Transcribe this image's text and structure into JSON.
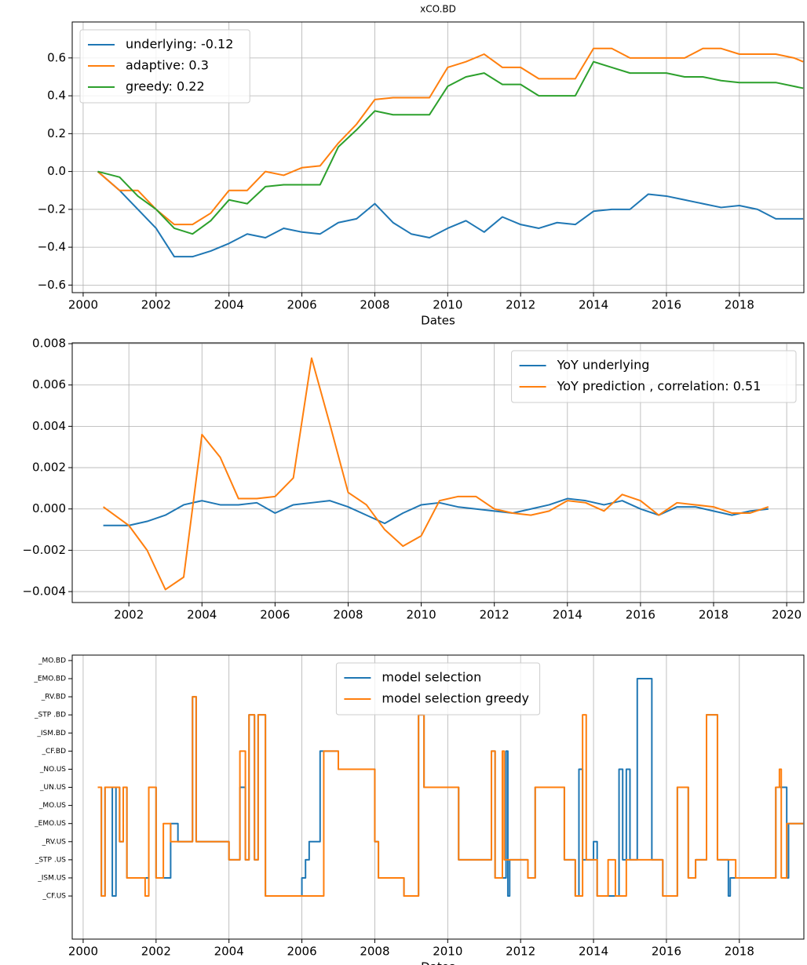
{
  "chart_data": [
    {
      "type": "line",
      "title": "xCO.BD",
      "xlabel": "Dates",
      "legend": "upper left",
      "grid": true,
      "xlim": [
        1999.7,
        2019.77
      ],
      "ylim": [
        -0.64,
        0.79
      ],
      "xticks": [
        2000,
        2002,
        2004,
        2006,
        2008,
        2010,
        2012,
        2014,
        2016,
        2018
      ],
      "yticks": [
        {
          "value": -0.6,
          "label": "−0.6"
        },
        {
          "value": -0.4,
          "label": "−0.4"
        },
        {
          "value": -0.2,
          "label": "−0.2"
        },
        {
          "value": 0,
          "label": "0.0"
        },
        0.2,
        0.4,
        0.6
      ],
      "x": [
        2000.4,
        2001.0,
        2001.5,
        2002.0,
        2002.5,
        2003.0,
        2003.5,
        2004.0,
        2004.5,
        2005.0,
        2005.5,
        2006.0,
        2006.5,
        2007.0,
        2007.5,
        2008.0,
        2008.5,
        2009.0,
        2009.5,
        2010.0,
        2010.5,
        2011.0,
        2011.5,
        2012.0,
        2012.5,
        2013.0,
        2013.5,
        2014.0,
        2014.5,
        2015.0,
        2015.5,
        2016.0,
        2016.5,
        2017.0,
        2017.5,
        2018.0,
        2018.5,
        2019.0,
        2019.5,
        2019.75
      ],
      "series": [
        {
          "name": "underlying: -0.12",
          "color": "#1f77b4",
          "values": [
            0.0,
            -0.1,
            -0.2,
            -0.3,
            -0.45,
            -0.45,
            -0.42,
            -0.38,
            -0.33,
            -0.35,
            -0.3,
            -0.32,
            -0.33,
            -0.27,
            -0.25,
            -0.17,
            -0.27,
            -0.33,
            -0.35,
            -0.3,
            -0.26,
            -0.32,
            -0.24,
            -0.28,
            -0.3,
            -0.27,
            -0.28,
            -0.21,
            -0.2,
            -0.2,
            -0.12,
            -0.13,
            -0.15,
            -0.17,
            -0.19,
            -0.18,
            -0.2,
            -0.25,
            -0.25,
            -0.25
          ]
        },
        {
          "name": "adaptive: 0.3",
          "color": "#ff7f0e",
          "values": [
            0.0,
            -0.1,
            -0.1,
            -0.2,
            -0.28,
            -0.28,
            -0.22,
            -0.1,
            -0.1,
            0.0,
            -0.02,
            0.02,
            0.03,
            0.15,
            0.25,
            0.38,
            0.39,
            0.39,
            0.39,
            0.55,
            0.58,
            0.62,
            0.55,
            0.55,
            0.49,
            0.49,
            0.49,
            0.65,
            0.65,
            0.6,
            0.6,
            0.6,
            0.6,
            0.65,
            0.65,
            0.62,
            0.62,
            0.62,
            0.6,
            0.58
          ]
        },
        {
          "name": "greedy: 0.22",
          "color": "#2ca02c",
          "values": [
            0.0,
            -0.03,
            -0.13,
            -0.2,
            -0.3,
            -0.33,
            -0.26,
            -0.15,
            -0.17,
            -0.08,
            -0.07,
            -0.07,
            -0.07,
            0.13,
            0.22,
            0.32,
            0.3,
            0.3,
            0.3,
            0.45,
            0.5,
            0.52,
            0.46,
            0.46,
            0.4,
            0.4,
            0.4,
            0.58,
            0.55,
            0.52,
            0.52,
            0.52,
            0.5,
            0.5,
            0.48,
            0.47,
            0.47,
            0.47,
            0.45,
            0.44
          ]
        }
      ]
    },
    {
      "type": "line",
      "legend": "upper right",
      "grid": true,
      "xlim": [
        2000.45,
        2020.47
      ],
      "ylim": [
        -0.00453,
        0.00804
      ],
      "xticks": [
        2002,
        2004,
        2006,
        2008,
        2010,
        2012,
        2014,
        2016,
        2018,
        2020
      ],
      "yticks": [
        {
          "value": -0.004,
          "label": "−0.004"
        },
        {
          "value": -0.002,
          "label": "−0.002"
        },
        {
          "value": 0,
          "label": "0.000"
        },
        0.002,
        0.004,
        0.006,
        0.008
      ],
      "x": [
        2001.3,
        2002.0,
        2002.5,
        2003.0,
        2003.5,
        2004.0,
        2004.5,
        2005.0,
        2005.5,
        2006.0,
        2006.5,
        2007.0,
        2007.5,
        2008.0,
        2008.5,
        2009.0,
        2009.5,
        2010.0,
        2010.5,
        2011.0,
        2011.5,
        2012.0,
        2012.5,
        2013.0,
        2013.5,
        2014.0,
        2014.5,
        2015.0,
        2015.5,
        2016.0,
        2016.5,
        2017.0,
        2017.5,
        2018.0,
        2018.5,
        2019.0,
        2019.5
      ],
      "series": [
        {
          "name": "YoY underlying",
          "color": "#1f77b4",
          "values": [
            -0.0008,
            -0.0008,
            -0.0006,
            -0.0003,
            0.0002,
            0.0004,
            0.0002,
            0.0002,
            0.0003,
            -0.0002,
            0.0002,
            0.0003,
            0.0004,
            0.0001,
            -0.0003,
            -0.0007,
            -0.0002,
            0.0002,
            0.0003,
            0.0001,
            0.0,
            -0.0001,
            -0.0002,
            0.0,
            0.0002,
            0.0005,
            0.0004,
            0.0002,
            0.0004,
            0.0,
            -0.0003,
            0.0001,
            0.0001,
            -0.0001,
            -0.0003,
            -0.0001,
            0.0
          ]
        },
        {
          "name": "YoY prediction , correlation: 0.51",
          "color": "#ff7f0e",
          "values": [
            0.0001,
            -0.0008,
            -0.002,
            -0.0039,
            -0.0033,
            0.0036,
            0.0025,
            0.0005,
            0.0005,
            0.0006,
            0.0015,
            0.0073,
            0.0041,
            0.0008,
            0.0002,
            -0.001,
            -0.0018,
            -0.0013,
            0.0004,
            0.0006,
            0.0006,
            0.0,
            -0.0002,
            -0.0003,
            -0.0001,
            0.0004,
            0.0003,
            -0.0001,
            0.0007,
            0.0004,
            -0.0003,
            0.0003,
            0.0002,
            0.0001,
            -0.0002,
            -0.0002,
            0.0001
          ]
        }
      ]
    },
    {
      "type": "step",
      "xlabel": "Dates",
      "legend": "upper center",
      "grid": "x",
      "xlim": [
        1999.7,
        2019.77
      ],
      "ylim": [
        -2.38,
        13.3
      ],
      "xticks": [
        2000,
        2002,
        2004,
        2006,
        2008,
        2010,
        2012,
        2014,
        2016,
        2018
      ],
      "yticks": [
        {
          "value": 0,
          "label": "_CF.US"
        },
        {
          "value": 1,
          "label": "_ISM.US"
        },
        {
          "value": 2,
          "label": "_STP .US"
        },
        {
          "value": 3,
          "label": "_RV.US"
        },
        {
          "value": 4,
          "label": "_EMO.US"
        },
        {
          "value": 5,
          "label": "_MO.US"
        },
        {
          "value": 6,
          "label": "_UN.US"
        },
        {
          "value": 7,
          "label": "_NO.US"
        },
        {
          "value": 8,
          "label": "_CF.BD"
        },
        {
          "value": 9,
          "label": "_ISM.BD"
        },
        {
          "value": 10,
          "label": "_STP .BD"
        },
        {
          "value": 11,
          "label": "_RV.BD"
        },
        {
          "value": 12,
          "label": "_EMO.BD"
        },
        {
          "value": 13,
          "label": "_MO.BD"
        }
      ],
      "series": [
        {
          "name": "model selection",
          "color": "#1f77b4",
          "x": [
            2000.4,
            2000.5,
            2000.6,
            2000.8,
            2000.9,
            2001.0,
            2001.1,
            2001.2,
            2001.8,
            2002.0,
            2002.4,
            2002.6,
            2003.0,
            2003.1,
            2004.0,
            2004.3,
            2004.45,
            2004.55,
            2004.7,
            2004.8,
            2005.0,
            2006.0,
            2006.1,
            2006.2,
            2006.5,
            2007.0,
            2008.0,
            2008.1,
            2008.8,
            2009.2,
            2009.35,
            2010.3,
            2011.2,
            2011.3,
            2011.6,
            2011.65,
            2011.7,
            2012.2,
            2012.4,
            2013.2,
            2013.5,
            2013.6,
            2013.7,
            2014.0,
            2014.1,
            2014.7,
            2014.8,
            2014.9,
            2015.0,
            2015.2,
            2015.6,
            2015.9,
            2016.3,
            2016.6,
            2016.8,
            2017.1,
            2017.4,
            2017.7,
            2017.75,
            2019.0,
            2019.2,
            2019.3,
            2019.35,
            2019.75
          ],
          "values": [
            6,
            0,
            6,
            0,
            6,
            3,
            6,
            1,
            6,
            1,
            4,
            3,
            11,
            3,
            2,
            6,
            2,
            10,
            2,
            10,
            0,
            1,
            2,
            3,
            8,
            7,
            3,
            1,
            0,
            10,
            6,
            2,
            8,
            1,
            8,
            0,
            2,
            1,
            6,
            2,
            0,
            7,
            2,
            3,
            0,
            7,
            2,
            7,
            2,
            12,
            2,
            0,
            6,
            1,
            2,
            10,
            2,
            0,
            1,
            6,
            6,
            1,
            4,
            4
          ]
        },
        {
          "name": "model selection greedy",
          "color": "#ff7f0e",
          "x": [
            2000.4,
            2000.5,
            2000.6,
            2001.0,
            2001.1,
            2001.2,
            2001.7,
            2001.8,
            2002.0,
            2002.2,
            2002.4,
            2003.0,
            2003.1,
            2004.0,
            2004.3,
            2004.45,
            2004.55,
            2004.7,
            2004.8,
            2005.0,
            2006.6,
            2007.0,
            2008.0,
            2008.1,
            2008.8,
            2009.2,
            2009.35,
            2010.3,
            2011.2,
            2011.3,
            2011.5,
            2011.55,
            2012.2,
            2012.4,
            2013.2,
            2013.5,
            2013.7,
            2013.8,
            2014.1,
            2014.4,
            2014.6,
            2014.9,
            2015.9,
            2016.3,
            2016.6,
            2016.8,
            2017.1,
            2017.4,
            2017.9,
            2019.0,
            2019.1,
            2019.15,
            2019.3,
            2019.75
          ],
          "values": [
            6,
            0,
            6,
            3,
            6,
            1,
            0,
            6,
            1,
            4,
            3,
            11,
            3,
            2,
            8,
            2,
            10,
            2,
            10,
            0,
            8,
            7,
            3,
            1,
            0,
            10,
            6,
            2,
            8,
            1,
            8,
            2,
            1,
            6,
            2,
            0,
            10,
            2,
            0,
            2,
            0,
            2,
            0,
            6,
            1,
            2,
            10,
            2,
            1,
            6,
            7,
            1,
            4,
            4
          ]
        }
      ]
    }
  ]
}
